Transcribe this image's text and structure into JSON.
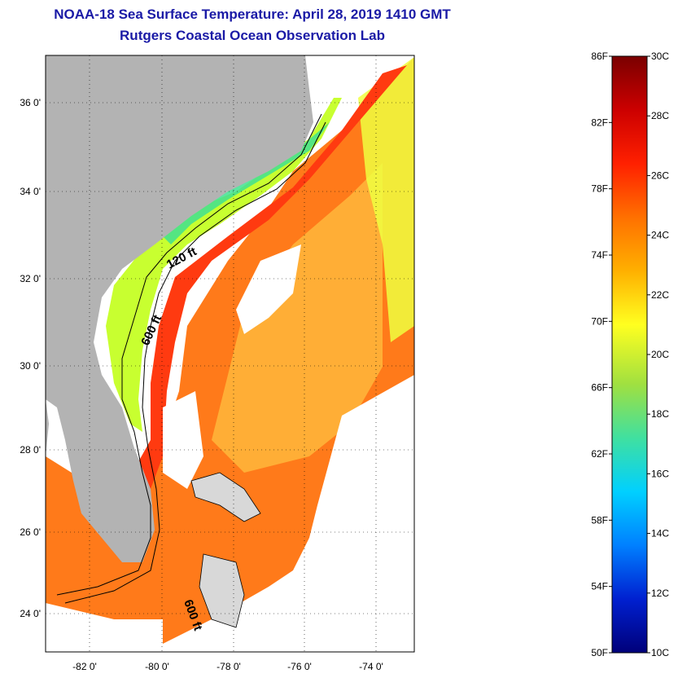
{
  "title_line1": "NOAA-18 Sea Surface Temperature:  April 28, 2019 1410 GMT",
  "title_line2": "Rutgers Coastal Ocean Observation Lab",
  "latitude_labels": [
    "36 0'",
    "34 0'",
    "32 0'",
    "30 0'",
    "28 0'",
    "26 0'",
    "24 0'"
  ],
  "longitude_labels": [
    "-82 0'",
    "-80 0'",
    "-78 0'",
    "-76 0'",
    "-74 0'"
  ],
  "contour_labels": [
    "120 ft",
    "600 ft",
    "600 ft"
  ],
  "colorbar": {
    "fahrenheit_labels": [
      "86F",
      "82F",
      "78F",
      "74F",
      "70F",
      "66F",
      "62F",
      "58F",
      "54F",
      "50F"
    ],
    "celsius_labels": [
      "30C",
      "28C",
      "26C",
      "24C",
      "22C",
      "20C",
      "18C",
      "16C",
      "14C",
      "12C",
      "10C"
    ],
    "range_f": [
      50,
      86
    ],
    "range_c": [
      10,
      30
    ],
    "colors_top_to_bottom": [
      "#7a0000",
      "#cc0000",
      "#ff2000",
      "#ff7000",
      "#ffb000",
      "#ffff20",
      "#a0e040",
      "#40e0a0",
      "#00d0ff",
      "#0080ff",
      "#0020d0",
      "#00007a"
    ]
  },
  "colors": {
    "title": "#1a1aa6",
    "land": "#b3b3b3",
    "gulf_stream": "#ff3a10",
    "warm_water": "#ff7a1a",
    "shelf_water": "#d8ff30",
    "coastal_water": "#40e090",
    "no_data": "#ffffff"
  }
}
